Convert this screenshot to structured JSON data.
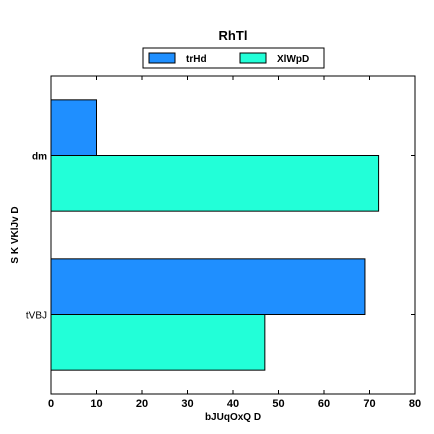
{
  "chart_data": {
    "type": "bar",
    "orientation": "horizontal",
    "title": "RhTl",
    "xlabel": "bJUqOxQ D",
    "ylabel": "S K VKlJv D",
    "categories": [
      "dm",
      "tVBJ"
    ],
    "category_label_bold": [
      true,
      false
    ],
    "series": [
      {
        "name": "trHd",
        "values": [
          10,
          69
        ],
        "color": "#1f8fff"
      },
      {
        "name": "XlWpD",
        "values": [
          72,
          47
        ],
        "color": "#22ffd8"
      }
    ],
    "xlim": [
      0,
      80
    ],
    "xticks": [
      "0",
      "10",
      "20",
      "30",
      "40",
      "50",
      "60",
      "70",
      "80"
    ],
    "grid": false,
    "legend_position": "top-center"
  }
}
